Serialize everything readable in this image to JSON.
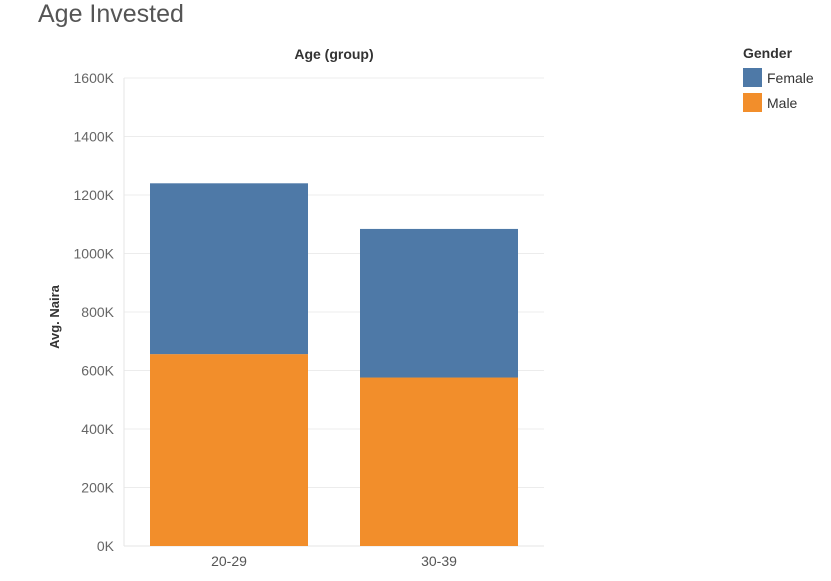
{
  "page": {
    "title": "Age Invested"
  },
  "legend": {
    "title": "Gender",
    "items": [
      {
        "name": "female",
        "label": "Female",
        "color": "#4e79a7"
      },
      {
        "name": "male",
        "label": "Male",
        "color": "#f28e2b"
      }
    ]
  },
  "chart_data": {
    "type": "bar",
    "stacked": true,
    "title": "Age Invested",
    "header": "Age (group)",
    "xlabel": "",
    "ylabel": "Avg. Naira",
    "categories": [
      "20-29",
      "30-39"
    ],
    "series": [
      {
        "name": "Male",
        "color": "#f28e2b",
        "values": [
          656000,
          576000
        ]
      },
      {
        "name": "Female",
        "color": "#4e79a7",
        "values": [
          584000,
          508000
        ]
      }
    ],
    "ylim": [
      0,
      1600000
    ],
    "yticks": [
      0,
      200000,
      400000,
      600000,
      800000,
      1000000,
      1200000,
      1400000,
      1600000
    ],
    "ytick_labels": [
      "0K",
      "200K",
      "400K",
      "600K",
      "800K",
      "1000K",
      "1200K",
      "1400K",
      "1600K"
    ],
    "grid": true,
    "legend_position": "top-right"
  }
}
